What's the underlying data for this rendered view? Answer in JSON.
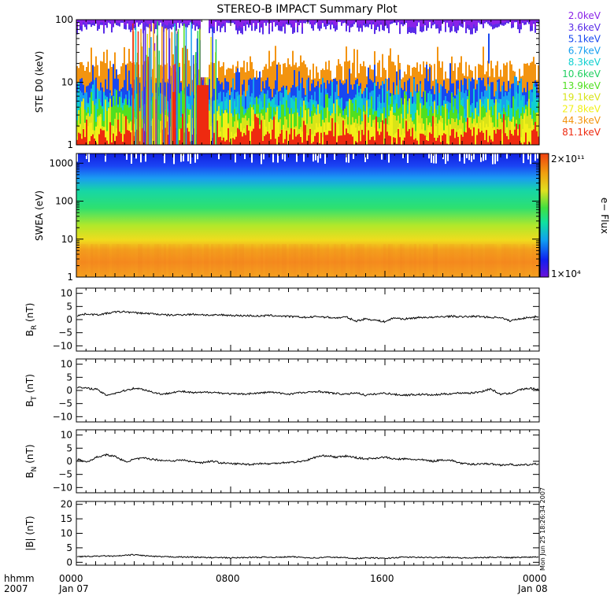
{
  "title": "STEREO-B IMPACT Summary Plot",
  "sidelabel": "Mon Jun 25 18:26:34 2007",
  "x_axis": {
    "row1": [
      "hhmm",
      "0000",
      "0800",
      "1600",
      "0000"
    ],
    "row2": [
      "2007",
      "Jan 07",
      "",
      "",
      "Jan 08"
    ]
  },
  "colors": {
    "ste_channels": [
      "#8a22e8",
      "#5a2ce8",
      "#1848f0",
      "#18a0f0",
      "#10d0d0",
      "#22d062",
      "#50e020",
      "#d8e418",
      "#f2f018",
      "#f39410",
      "#ee2a10"
    ],
    "colorbar": [
      "#6a10d8",
      "#1020f0",
      "#10a0f0",
      "#10e0a0",
      "#40e040",
      "#e0e020",
      "#f0a010",
      "#f04010"
    ]
  },
  "chart_data": [
    {
      "type": "line",
      "panel": "STE-D0 spectra",
      "ylabel": "STE D0 (keV)",
      "yscale": "log",
      "ylim": [
        1,
        100
      ],
      "yticks": [
        "1",
        "10",
        "100"
      ],
      "xlim_hours": [
        0,
        24
      ],
      "legend_position": "right",
      "series": [
        {
          "name": "2.0keV",
          "baseline": 90
        },
        {
          "name": "3.6keV",
          "baseline": 90
        },
        {
          "name": "5.1keV",
          "baseline": 8
        },
        {
          "name": "6.7keV",
          "baseline": 5
        },
        {
          "name": "8.3keV",
          "baseline": 4
        },
        {
          "name": "10.6keV",
          "baseline": 3.5
        },
        {
          "name": "13.9keV",
          "baseline": 3
        },
        {
          "name": "19.1keV",
          "baseline": 2
        },
        {
          "name": "27.8keV",
          "baseline": 1.6
        },
        {
          "name": "44.3keV",
          "baseline": 15
        },
        {
          "name": "81.1keV",
          "baseline": 1.3
        }
      ]
    },
    {
      "type": "heatmap",
      "panel": "SWEA spectrogram",
      "ylabel": "SWEA (eV)",
      "yscale": "log",
      "ylim": [
        1,
        1800
      ],
      "yticks": [
        "1",
        "10",
        "100",
        "1000"
      ],
      "colorbar": {
        "label": "e− Flux",
        "max_label": "2×10¹¹",
        "min_label": "1×10⁴"
      }
    },
    {
      "type": "line",
      "panel": "BR",
      "ylabel_sym": "B",
      "ylabel_sub": "R",
      "ylabel_unit": " (nT)",
      "ylim": [
        -12,
        12
      ],
      "yticks": [
        "10",
        "5",
        "0",
        "−5",
        "−10"
      ],
      "series": [
        {
          "values": [
            1.5,
            2.2,
            1.8,
            2.3,
            2.9,
            3.0,
            2.6,
            2.4,
            2.2,
            1.8,
            1.7,
            1.9,
            2.0,
            1.9,
            1.6,
            1.8,
            1.6,
            1.5,
            1.5,
            1.3,
            1.6,
            1.4,
            1.2,
            1.0,
            0.8,
            1.2,
            0.9,
            0.6,
            1.0,
            -0.6,
            0.3,
            -0.2,
            -0.8,
            0.7,
            0.2,
            0.6,
            0.9,
            0.8,
            1.1,
            1.3,
            1.0,
            1.2,
            1.2,
            0.8,
            0.9,
            -0.5,
            0.3,
            0.8,
            1.2
          ]
        }
      ]
    },
    {
      "type": "line",
      "panel": "BT",
      "ylabel_sym": "B",
      "ylabel_sub": "T",
      "ylabel_unit": " (nT)",
      "ylim": [
        -12,
        12
      ],
      "yticks": [
        "10",
        "5",
        "0",
        "−5",
        "−10"
      ],
      "series": [
        {
          "values": [
            1.2,
            0.8,
            0.5,
            -1.8,
            -1.0,
            0.0,
            0.9,
            0.3,
            -0.8,
            -1.5,
            -0.6,
            -0.4,
            -0.9,
            -0.8,
            -0.6,
            -1.0,
            -1.3,
            -1.4,
            -1.2,
            -1.0,
            -0.6,
            -1.0,
            -1.4,
            -0.9,
            -0.8,
            -0.3,
            -0.8,
            -1.2,
            -1.5,
            -0.8,
            -1.8,
            -1.4,
            -1.0,
            -1.5,
            -1.8,
            -1.6,
            -1.5,
            -1.8,
            -1.4,
            -1.2,
            -0.9,
            -1.0,
            -0.5,
            0.6,
            -1.4,
            -1.2,
            0.2,
            0.8,
            0.4
          ]
        }
      ]
    },
    {
      "type": "line",
      "panel": "BN",
      "ylabel_sym": "B",
      "ylabel_sub": "N",
      "ylabel_unit": " (nT)",
      "ylim": [
        -12,
        12
      ],
      "yticks": [
        "10",
        "5",
        "0",
        "−5",
        "−10"
      ],
      "series": [
        {
          "values": [
            0.8,
            -0.3,
            1.5,
            2.5,
            1.8,
            -0.2,
            0.8,
            1.2,
            0.7,
            0.3,
            0.2,
            0.5,
            -0.2,
            -0.5,
            0.1,
            -0.6,
            -0.9,
            -1.0,
            -1.2,
            -0.8,
            -1.0,
            -0.6,
            -0.4,
            -0.2,
            0.5,
            1.8,
            2.2,
            1.5,
            2.0,
            1.4,
            0.9,
            1.2,
            1.6,
            0.8,
            0.9,
            0.7,
            0.5,
            0.0,
            0.6,
            0.3,
            -0.8,
            -1.2,
            -0.9,
            -1.0,
            -1.4,
            -1.2,
            -1.5,
            -1.3,
            -1.0
          ]
        }
      ]
    },
    {
      "type": "line",
      "panel": "|B|",
      "ylabel_sym": "|B|",
      "ylabel_sub": "",
      "ylabel_unit": " (nT)",
      "ylim": [
        -1,
        21
      ],
      "yticks": [
        "20",
        "15",
        "10",
        "5",
        "0"
      ],
      "series": [
        {
          "values": [
            2.0,
            2.0,
            2.1,
            2.2,
            2.1,
            2.4,
            2.6,
            2.3,
            2.0,
            1.9,
            1.9,
            1.8,
            1.8,
            1.7,
            1.6,
            1.6,
            1.5,
            1.6,
            1.7,
            1.7,
            1.8,
            1.7,
            1.9,
            1.8,
            1.6,
            1.5,
            1.8,
            1.7,
            1.6,
            1.3,
            1.5,
            1.5,
            1.3,
            1.6,
            1.8,
            1.7,
            1.7,
            1.6,
            1.8,
            1.7,
            1.5,
            1.5,
            1.6,
            1.7,
            1.8,
            1.6,
            1.7,
            1.8,
            1.9
          ]
        }
      ]
    }
  ]
}
